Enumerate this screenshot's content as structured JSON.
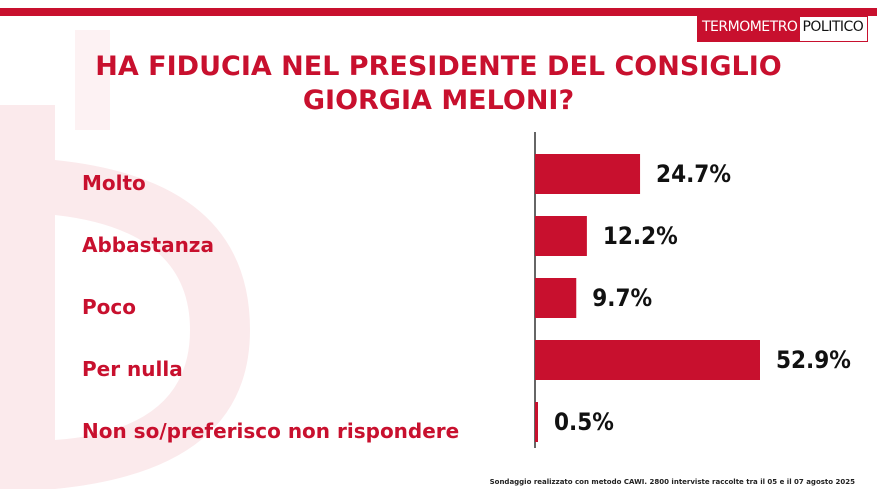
{
  "brand": {
    "logo_part1": "TERMOMETRO",
    "logo_part2": "POLITICO",
    "accent_color": "#c8102e",
    "value_color": "#111111"
  },
  "title_line1": "HA FIDUCIA NEL PRESIDENTE DEL CONSIGLIO",
  "title_line2": "GIORGIA MELONI?",
  "footnote": "Sondaggio realizzato con metodo CAWI. 2800 interviste raccolte tra il 05 e il 07 agosto 2025",
  "chart_data": {
    "type": "bar",
    "orientation": "horizontal",
    "title": "HA FIDUCIA NEL PRESIDENTE DEL CONSIGLIO GIORGIA MELONI?",
    "categories": [
      "Molto",
      "Abbastanza",
      "Poco",
      "Per nulla",
      "Non so/preferisco non rispondere"
    ],
    "values": [
      24.7,
      12.2,
      9.7,
      52.9,
      0.5
    ],
    "value_labels": [
      "24.7%",
      "12.2%",
      "9.7%",
      "52.9%",
      "0.5%"
    ],
    "unit": "%",
    "xlim": [
      0,
      52.9
    ],
    "grid": false,
    "legend": "none",
    "bar_color": "#c8102e"
  }
}
